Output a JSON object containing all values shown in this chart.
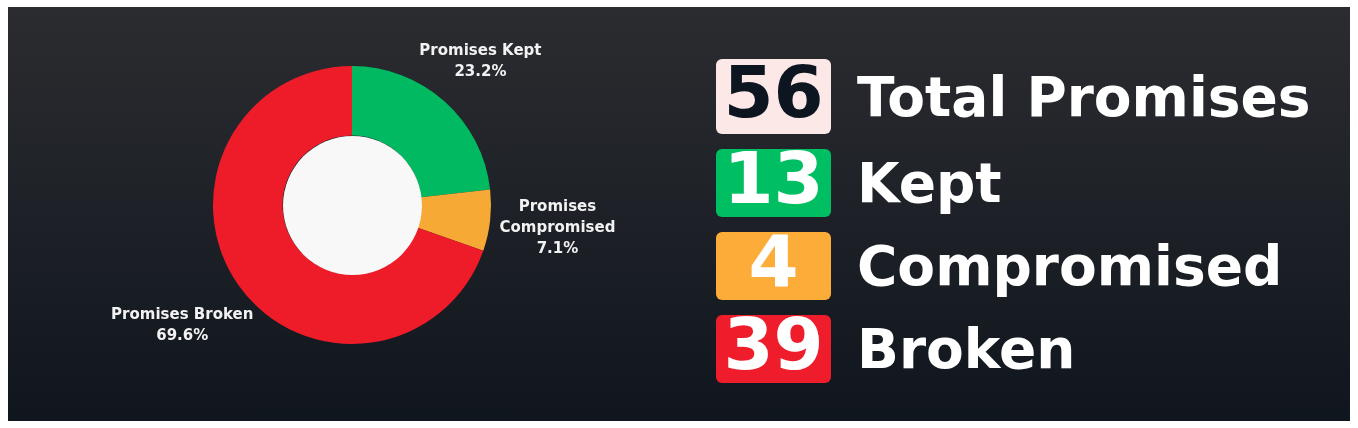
{
  "chart_data": [
    {
      "type": "donut",
      "categories": [
        "Promises Kept",
        "Promises Compromised",
        "Promises Broken"
      ],
      "values": [
        23.2,
        7.1,
        69.6
      ],
      "colors": [
        "#00b960",
        "#f7a935",
        "#ee1c29"
      ],
      "value_labels": [
        "23.2%",
        "7.1%",
        "69.6%"
      ]
    },
    {
      "type": "other",
      "categories": [
        "Total Promises",
        "Kept",
        "Compromised",
        "Broken"
      ],
      "values": [
        56,
        13,
        4,
        39
      ],
      "colors": [
        "#fde8e8",
        "#00bf63",
        "#fcac38",
        "#ef1c2b"
      ],
      "data_labels": true
    }
  ]
}
